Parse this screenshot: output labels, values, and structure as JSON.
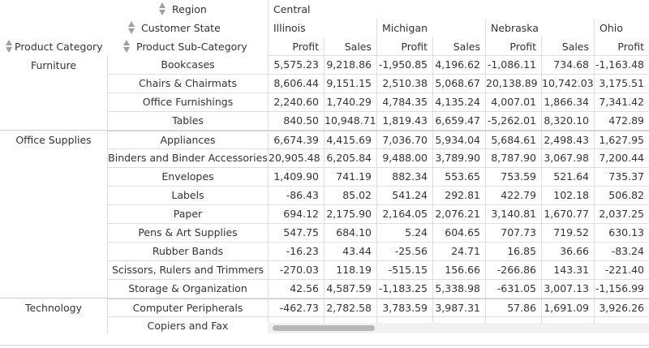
{
  "row_headers": {
    "region_label": "Region",
    "state_label": "Customer State",
    "category_label": "Product Category",
    "subcategory_label": "Product Sub-Category"
  },
  "columns": {
    "region": "Central",
    "states": [
      "Illinois",
      "Michigan",
      "Nebraska",
      "Ohio"
    ],
    "measures": [
      "Profit",
      "Sales"
    ]
  },
  "rows": [
    {
      "category": "Furniture",
      "sub": "Bookcases",
      "vals": [
        "5,575.23",
        "9,218.86",
        "-1,950.85",
        "4,196.62",
        "-1,086.11",
        "734.68",
        "-1,163.48"
      ]
    },
    {
      "category": "",
      "sub": "Chairs & Chairmats",
      "vals": [
        "8,606.44",
        "9,151.15",
        "2,510.38",
        "5,068.67",
        "20,138.89",
        "10,742.03",
        "3,175.51"
      ]
    },
    {
      "category": "",
      "sub": "Office Furnishings",
      "vals": [
        "2,240.60",
        "1,740.29",
        "4,784.35",
        "4,135.24",
        "4,007.01",
        "1,866.34",
        "7,341.42"
      ]
    },
    {
      "category": "",
      "sub": "Tables",
      "vals": [
        "840.50",
        "10,948.71",
        "1,819.43",
        "6,659.47",
        "-5,262.01",
        "8,320.10",
        "472.89"
      ]
    },
    {
      "category": "Office Supplies",
      "sub": "Appliances",
      "vals": [
        "6,674.39",
        "4,415.69",
        "7,036.70",
        "5,934.04",
        "5,684.61",
        "2,498.43",
        "1,627.95"
      ]
    },
    {
      "category": "",
      "sub": "Binders and Binder Accessories",
      "vals": [
        "20,905.48",
        "6,205.84",
        "9,488.00",
        "3,789.90",
        "8,787.90",
        "3,067.98",
        "7,200.44"
      ]
    },
    {
      "category": "",
      "sub": "Envelopes",
      "vals": [
        "1,409.90",
        "741.19",
        "882.34",
        "553.65",
        "753.59",
        "521.64",
        "735.37"
      ]
    },
    {
      "category": "",
      "sub": "Labels",
      "vals": [
        "-86.43",
        "85.02",
        "541.24",
        "292.81",
        "422.79",
        "102.18",
        "506.82"
      ]
    },
    {
      "category": "",
      "sub": "Paper",
      "vals": [
        "694.12",
        "2,175.90",
        "2,164.05",
        "2,076.21",
        "3,140.81",
        "1,670.77",
        "2,037.25"
      ]
    },
    {
      "category": "",
      "sub": "Pens & Art Supplies",
      "vals": [
        "547.75",
        "684.10",
        "5.24",
        "604.65",
        "707.73",
        "719.52",
        "630.13"
      ]
    },
    {
      "category": "",
      "sub": "Rubber Bands",
      "vals": [
        "-16.23",
        "43.44",
        "-25.56",
        "24.71",
        "16.85",
        "36.66",
        "-83.24"
      ]
    },
    {
      "category": "",
      "sub": "Scissors, Rulers and Trimmers",
      "vals": [
        "-270.03",
        "118.19",
        "-515.15",
        "156.66",
        "-266.86",
        "143.31",
        "-221.40"
      ]
    },
    {
      "category": "",
      "sub": "Storage & Organization",
      "vals": [
        "42.56",
        "4,587.59",
        "-1,183.25",
        "5,338.98",
        "-631.05",
        "3,007.13",
        "-1,156.99"
      ]
    },
    {
      "category": "Technology",
      "sub": "Computer Peripherals",
      "vals": [
        "-462.73",
        "2,782.58",
        "3,783.59",
        "3,987.31",
        "57.86",
        "1,691.09",
        "3,926.26"
      ]
    },
    {
      "category": "",
      "sub": "Copiers and Fax",
      "vals": [
        "",
        "",
        "",
        "",
        "",
        "",
        ""
      ]
    }
  ],
  "colors": {
    "grid_line": "#dddddd",
    "text": "#333333",
    "sort_arrow": "#9aa0a6",
    "scroll_thumb": "#b8b8b8"
  },
  "icons": [
    "sort-arrows-icon"
  ]
}
